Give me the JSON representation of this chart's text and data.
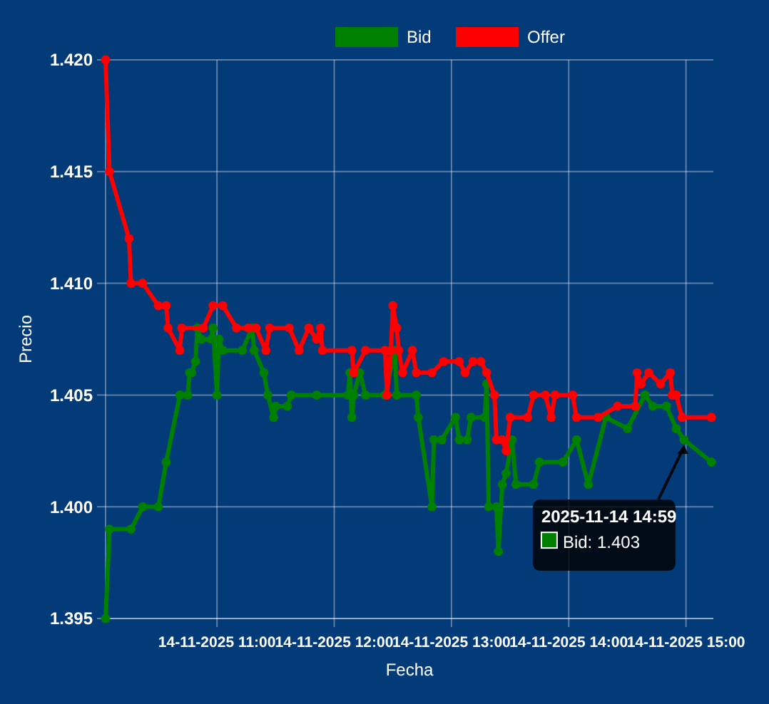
{
  "chart_data": {
    "type": "line",
    "xlabel": "Fecha",
    "ylabel": "Precio",
    "legend": "top",
    "grid": true,
    "marker": "circle",
    "line_style": "solid",
    "xlim": [
      "2025-11-14T10:03",
      "2025-11-14T15:14"
    ],
    "xticks": [
      {
        "value": "2025-11-14T11:00",
        "label": "14-11-2025 11:00"
      },
      {
        "value": "2025-11-14T12:00",
        "label": "14-11-2025 12:00"
      },
      {
        "value": "2025-11-14T13:00",
        "label": "14-11-2025 13:00"
      },
      {
        "value": "2025-11-14T14:00",
        "label": "14-11-2025 14:00"
      },
      {
        "value": "2025-11-14T15:00",
        "label": "14-11-2025 15:00"
      }
    ],
    "ylim": [
      1.395,
      1.42
    ],
    "yticks": [
      {
        "value": 1.395,
        "label": "1.395"
      },
      {
        "value": 1.4,
        "label": "1.400"
      },
      {
        "value": 1.405,
        "label": "1.405"
      },
      {
        "value": 1.41,
        "label": "1.410"
      },
      {
        "value": 1.415,
        "label": "1.415"
      },
      {
        "value": 1.42,
        "label": "1.420"
      }
    ],
    "series": [
      {
        "name": "Bid",
        "color": "#008000",
        "x": [
          "2025-11-14T10:03",
          "2025-11-14T10:05",
          "2025-11-14T10:16",
          "2025-11-14T10:22",
          "2025-11-14T10:30",
          "2025-11-14T10:34",
          "2025-11-14T10:41",
          "2025-11-14T10:45",
          "2025-11-14T10:46",
          "2025-11-14T10:47",
          "2025-11-14T10:49",
          "2025-11-14T10:50",
          "2025-11-14T10:52",
          "2025-11-14T10:57",
          "2025-11-14T10:58",
          "2025-11-14T11:00",
          "2025-11-14T11:01",
          "2025-11-14T11:03",
          "2025-11-14T11:13",
          "2025-11-14T11:18",
          "2025-11-14T11:19",
          "2025-11-14T11:24",
          "2025-11-14T11:26",
          "2025-11-14T11:29",
          "2025-11-14T11:30",
          "2025-11-14T11:36",
          "2025-11-14T11:38",
          "2025-11-14T11:51",
          "2025-11-14T12:07",
          "2025-11-14T12:08",
          "2025-11-14T12:09",
          "2025-11-14T12:10",
          "2025-11-14T12:13",
          "2025-11-14T12:16",
          "2025-11-14T12:26",
          "2025-11-14T12:31",
          "2025-11-14T12:32",
          "2025-11-14T12:42",
          "2025-11-14T12:43",
          "2025-11-14T12:50",
          "2025-11-14T12:51",
          "2025-11-14T12:55",
          "2025-11-14T13:02",
          "2025-11-14T13:04",
          "2025-11-14T13:08",
          "2025-11-14T13:10",
          "2025-11-14T13:17",
          "2025-11-14T13:18",
          "2025-11-14T13:19",
          "2025-11-14T13:23",
          "2025-11-14T13:24",
          "2025-11-14T13:26",
          "2025-11-14T13:28",
          "2025-11-14T13:30",
          "2025-11-14T13:31",
          "2025-11-14T13:33",
          "2025-11-14T13:42",
          "2025-11-14T13:45",
          "2025-11-14T13:57",
          "2025-11-14T14:04",
          "2025-11-14T14:10",
          "2025-11-14T14:19",
          "2025-11-14T14:30",
          "2025-11-14T14:39",
          "2025-11-14T14:43",
          "2025-11-14T14:50",
          "2025-11-14T14:55",
          "2025-11-14T14:59",
          "2025-11-14T15:13"
        ],
        "values": [
          1.395,
          1.399,
          1.399,
          1.4,
          1.4,
          1.402,
          1.405,
          1.405,
          1.406,
          1.406,
          1.4065,
          1.408,
          1.4075,
          1.4075,
          1.408,
          1.405,
          1.4075,
          1.407,
          1.407,
          1.408,
          1.407,
          1.406,
          1.405,
          1.404,
          1.4045,
          1.4045,
          1.405,
          1.405,
          1.405,
          1.406,
          1.404,
          1.405,
          1.406,
          1.405,
          1.405,
          1.407,
          1.405,
          1.405,
          1.404,
          1.4,
          1.403,
          1.403,
          1.404,
          1.403,
          1.403,
          1.404,
          1.404,
          1.4055,
          1.4,
          1.4,
          1.398,
          1.401,
          1.4015,
          1.4025,
          1.403,
          1.401,
          1.401,
          1.402,
          1.402,
          1.403,
          1.401,
          1.404,
          1.4035,
          1.405,
          1.4045,
          1.4045,
          1.4035,
          1.403,
          1.402
        ]
      },
      {
        "name": "Offer",
        "color": "#ff0000",
        "x": [
          "2025-11-14T10:03",
          "2025-11-14T10:05",
          "2025-11-14T10:15",
          "2025-11-14T10:16",
          "2025-11-14T10:22",
          "2025-11-14T10:30",
          "2025-11-14T10:34",
          "2025-11-14T10:35",
          "2025-11-14T10:41",
          "2025-11-14T10:42",
          "2025-11-14T10:53",
          "2025-11-14T10:58",
          "2025-11-14T11:03",
          "2025-11-14T11:10",
          "2025-11-14T11:16",
          "2025-11-14T11:20",
          "2025-11-14T11:25",
          "2025-11-14T11:27",
          "2025-11-14T11:37",
          "2025-11-14T11:42",
          "2025-11-14T11:47",
          "2025-11-14T11:51",
          "2025-11-14T11:53",
          "2025-11-14T11:54",
          "2025-11-14T12:09",
          "2025-11-14T12:10",
          "2025-11-14T12:16",
          "2025-11-14T12:26",
          "2025-11-14T12:27",
          "2025-11-14T12:29",
          "2025-11-14T12:30",
          "2025-11-14T12:32",
          "2025-11-14T12:33",
          "2025-11-14T12:35",
          "2025-11-14T12:40",
          "2025-11-14T12:42",
          "2025-11-14T12:50",
          "2025-11-14T12:56",
          "2025-11-14T13:04",
          "2025-11-14T13:07",
          "2025-11-14T13:11",
          "2025-11-14T13:15",
          "2025-11-14T13:18",
          "2025-11-14T13:22",
          "2025-11-14T13:23",
          "2025-11-14T13:26",
          "2025-11-14T13:28",
          "2025-11-14T13:30",
          "2025-11-14T13:39",
          "2025-11-14T13:42",
          "2025-11-14T13:48",
          "2025-11-14T13:51",
          "2025-11-14T13:53",
          "2025-11-14T14:02",
          "2025-11-14T14:04",
          "2025-11-14T14:15",
          "2025-11-14T14:25",
          "2025-11-14T14:34",
          "2025-11-14T14:35",
          "2025-11-14T14:37",
          "2025-11-14T14:41",
          "2025-11-14T14:47",
          "2025-11-14T14:52",
          "2025-11-14T14:53",
          "2025-11-14T14:55",
          "2025-11-14T14:58",
          "2025-11-14T15:13"
        ],
        "values": [
          1.42,
          1.415,
          1.412,
          1.41,
          1.41,
          1.409,
          1.409,
          1.408,
          1.407,
          1.408,
          1.408,
          1.409,
          1.409,
          1.408,
          1.408,
          1.408,
          1.407,
          1.408,
          1.408,
          1.407,
          1.408,
          1.4075,
          1.408,
          1.407,
          1.407,
          1.406,
          1.407,
          1.407,
          1.405,
          1.407,
          1.409,
          1.408,
          1.407,
          1.406,
          1.407,
          1.406,
          1.406,
          1.4065,
          1.4065,
          1.406,
          1.4065,
          1.4065,
          1.406,
          1.405,
          1.403,
          1.403,
          1.4025,
          1.404,
          1.404,
          1.405,
          1.405,
          1.404,
          1.405,
          1.405,
          1.404,
          1.404,
          1.4045,
          1.4045,
          1.406,
          1.4055,
          1.406,
          1.4055,
          1.406,
          1.405,
          1.405,
          1.404,
          1.404
        ]
      }
    ],
    "annotations": [
      {
        "text": "2025-11-14 14:59\nBid: 1.403",
        "x": "2025-11-14T14:59",
        "y": 1.403
      }
    ]
  }
}
